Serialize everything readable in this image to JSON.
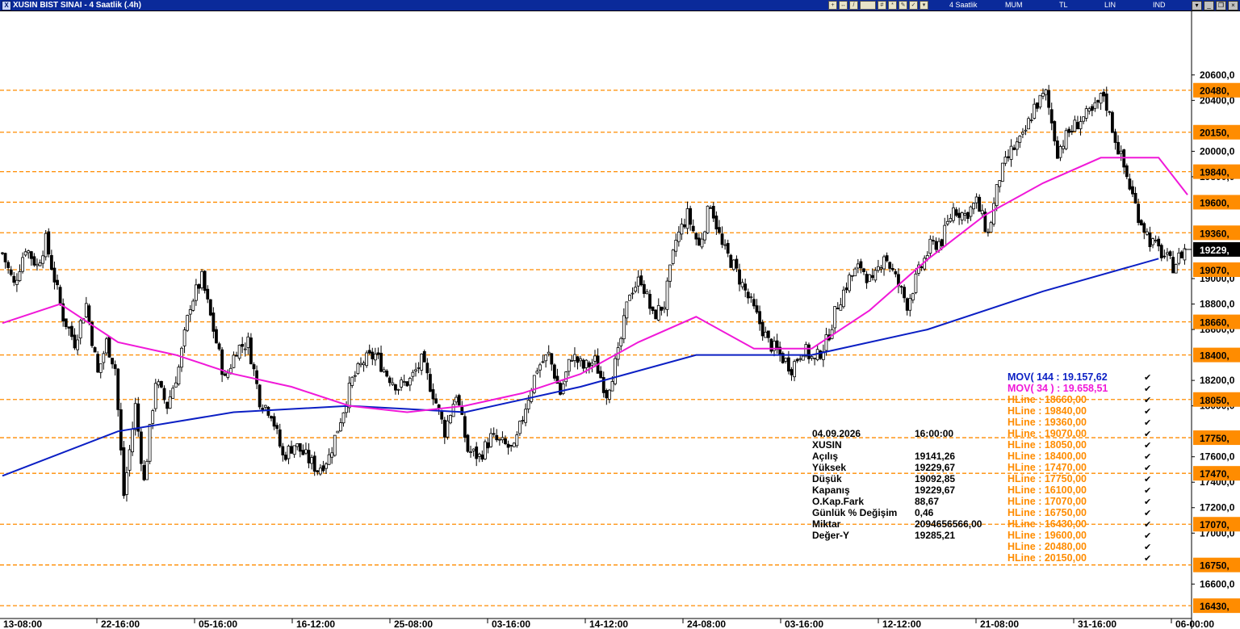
{
  "window": {
    "title": "XUSIN BIST SINAI - 4 Saatlik (.4h)",
    "toolbar": {
      "period": "4 Saatlik",
      "chart_style": "MUM",
      "currency": "TL",
      "scale": "LIN",
      "indicators": "IND"
    }
  },
  "chart_data": {
    "type": "candlestick",
    "symbol": "XUSIN",
    "y_ticks": [
      "20600,0",
      "20400,0",
      "20000,0",
      "19800,0",
      "19000,0",
      "18800,0",
      "18600,0",
      "18200,0",
      "18000,0",
      "17600,0",
      "17400,0",
      "17200,0",
      "17000,0",
      "16600,0"
    ],
    "ylim": [
      16380,
      21100
    ],
    "x_ticks": [
      "13-08:00",
      "22-16:00",
      "05-16:00",
      "16-12:00",
      "25-08:00",
      "03-16:00",
      "14-12:00",
      "24-08:00",
      "03-16:00",
      "12-12:00",
      "21-08:00",
      "31-16:00",
      "06-00:00"
    ],
    "last_price": "19229,",
    "hlines": [
      {
        "value": 18660,
        "label": "18660,"
      },
      {
        "value": 19840,
        "label": "19840,"
      },
      {
        "value": 19360,
        "label": "19360,"
      },
      {
        "value": 19070,
        "label": "19070,"
      },
      {
        "value": 18050,
        "label": "18050,"
      },
      {
        "value": 18400,
        "label": "18400,"
      },
      {
        "value": 17470,
        "label": "17470,"
      },
      {
        "value": 17750,
        "label": "17750,"
      },
      {
        "value": 16100,
        "label": ""
      },
      {
        "value": 17070,
        "label": "17070,"
      },
      {
        "value": 16750,
        "label": "16750,"
      },
      {
        "value": 16430,
        "label": "16430,"
      },
      {
        "value": 19600,
        "label": "19600,"
      },
      {
        "value": 20480,
        "label": "20480,"
      },
      {
        "value": 20150,
        "label": "20150,"
      }
    ],
    "close_path": [
      [
        0,
        19200
      ],
      [
        4,
        18950
      ],
      [
        8,
        19250
      ],
      [
        12,
        19100
      ],
      [
        15,
        19300
      ],
      [
        18,
        19000
      ],
      [
        21,
        18700
      ],
      [
        25,
        18500
      ],
      [
        29,
        18800
      ],
      [
        33,
        18250
      ],
      [
        36,
        18500
      ],
      [
        39,
        18300
      ],
      [
        42,
        17300
      ],
      [
        46,
        18000
      ],
      [
        49,
        17400
      ],
      [
        53,
        18200
      ],
      [
        57,
        18000
      ],
      [
        61,
        18300
      ],
      [
        65,
        18800
      ],
      [
        69,
        19000
      ],
      [
        73,
        18600
      ],
      [
        77,
        18200
      ],
      [
        81,
        18450
      ],
      [
        85,
        18500
      ],
      [
        89,
        18050
      ],
      [
        93,
        17950
      ],
      [
        97,
        17600
      ],
      [
        101,
        17700
      ],
      [
        105,
        17600
      ],
      [
        109,
        17500
      ],
      [
        113,
        17600
      ],
      [
        117,
        17900
      ],
      [
        121,
        18200
      ],
      [
        125,
        18350
      ],
      [
        129,
        18400
      ],
      [
        133,
        18250
      ],
      [
        137,
        18150
      ],
      [
        141,
        18200
      ],
      [
        145,
        18350
      ],
      [
        149,
        18100
      ],
      [
        153,
        17800
      ],
      [
        157,
        18100
      ],
      [
        161,
        17650
      ],
      [
        165,
        17600
      ],
      [
        169,
        17750
      ],
      [
        173,
        17700
      ],
      [
        177,
        17650
      ],
      [
        181,
        18000
      ],
      [
        185,
        18300
      ],
      [
        189,
        18400
      ],
      [
        193,
        18100
      ],
      [
        197,
        18400
      ],
      [
        201,
        18300
      ],
      [
        205,
        18350
      ],
      [
        209,
        18100
      ],
      [
        213,
        18400
      ],
      [
        217,
        18900
      ],
      [
        221,
        19000
      ],
      [
        225,
        18700
      ],
      [
        229,
        18800
      ],
      [
        233,
        19300
      ],
      [
        237,
        19500
      ],
      [
        241,
        19250
      ],
      [
        245,
        19600
      ],
      [
        249,
        19250
      ],
      [
        253,
        19100
      ],
      [
        257,
        18900
      ],
      [
        261,
        18700
      ],
      [
        265,
        18500
      ],
      [
        269,
        18400
      ],
      [
        273,
        18300
      ],
      [
        277,
        18450
      ],
      [
        281,
        18350
      ],
      [
        285,
        18500
      ],
      [
        289,
        18800
      ],
      [
        293,
        19000
      ],
      [
        297,
        19100
      ],
      [
        301,
        18950
      ],
      [
        305,
        19200
      ],
      [
        309,
        19000
      ],
      [
        313,
        18800
      ],
      [
        317,
        19050
      ],
      [
        321,
        19250
      ],
      [
        325,
        19300
      ],
      [
        329,
        19550
      ],
      [
        333,
        19500
      ],
      [
        337,
        19600
      ],
      [
        341,
        19350
      ],
      [
        345,
        19800
      ],
      [
        349,
        20000
      ],
      [
        353,
        20100
      ],
      [
        357,
        20350
      ],
      [
        361,
        20450
      ],
      [
        365,
        20000
      ],
      [
        369,
        20150
      ],
      [
        373,
        20250
      ],
      [
        377,
        20300
      ],
      [
        381,
        20450
      ],
      [
        385,
        20100
      ],
      [
        389,
        19800
      ],
      [
        393,
        19500
      ],
      [
        397,
        19300
      ],
      [
        401,
        19200
      ],
      [
        405,
        19100
      ],
      [
        409,
        19229
      ]
    ],
    "moving_averages": [
      {
        "name": "MOV( 144 : 19.157,62",
        "color": "#0b1fc4",
        "points": [
          [
            0,
            17450
          ],
          [
            40,
            17800
          ],
          [
            80,
            17950
          ],
          [
            120,
            18000
          ],
          [
            160,
            17950
          ],
          [
            200,
            18150
          ],
          [
            240,
            18400
          ],
          [
            280,
            18400
          ],
          [
            320,
            18600
          ],
          [
            360,
            18900
          ],
          [
            400,
            19157
          ]
        ]
      },
      {
        "name": "MOV( 34 ) : 19.658,51",
        "color": "#f019d8",
        "points": [
          [
            0,
            18650
          ],
          [
            20,
            18800
          ],
          [
            40,
            18500
          ],
          [
            60,
            18400
          ],
          [
            80,
            18250
          ],
          [
            100,
            18150
          ],
          [
            120,
            18000
          ],
          [
            140,
            17950
          ],
          [
            160,
            18000
          ],
          [
            180,
            18100
          ],
          [
            200,
            18250
          ],
          [
            220,
            18500
          ],
          [
            240,
            18700
          ],
          [
            260,
            18450
          ],
          [
            280,
            18450
          ],
          [
            300,
            18750
          ],
          [
            320,
            19150
          ],
          [
            340,
            19500
          ],
          [
            360,
            19750
          ],
          [
            380,
            19950
          ],
          [
            400,
            19950
          ],
          [
            410,
            19658
          ]
        ]
      }
    ],
    "readout": {
      "rows": [
        {
          "label": "04.09.2026",
          "value": "16:00:00"
        },
        {
          "label": "XUSIN",
          "value": ""
        },
        {
          "label": "Açılış",
          "value": "19141,26"
        },
        {
          "label": "Yüksek",
          "value": "19229,67"
        },
        {
          "label": "Düşük",
          "value": "19092,85"
        },
        {
          "label": "Kapanış",
          "value": "19229,67"
        },
        {
          "label": "O.Kap.Fark",
          "value": "88,67"
        },
        {
          "label": "Günlük % Değişim",
          "value": "0,46"
        },
        {
          "label": "Miktar",
          "value": "2094656566,00"
        },
        {
          "label": "Değer-Y",
          "value": "19285,21"
        }
      ]
    },
    "legend": [
      {
        "text": "MOV( 144 : 19.157,62",
        "color": "#0b1fc4"
      },
      {
        "text": "MOV( 34 ) : 19.658,51",
        "color": "#f019d8"
      },
      {
        "text": "HLine        : 18660,00",
        "color": "#ff8c00"
      },
      {
        "text": "HLine        : 19840,00",
        "color": "#ff8c00"
      },
      {
        "text": "HLine        : 19360,00",
        "color": "#ff8c00"
      },
      {
        "text": "HLine        : 19070,00",
        "color": "#ff8c00"
      },
      {
        "text": "HLine        : 18050,00",
        "color": "#ff8c00"
      },
      {
        "text": "HLine        : 18400,00",
        "color": "#ff8c00"
      },
      {
        "text": "HLine        : 17470,00",
        "color": "#ff8c00"
      },
      {
        "text": "HLine        : 17750,00",
        "color": "#ff8c00"
      },
      {
        "text": "HLine        : 16100,00",
        "color": "#ff8c00"
      },
      {
        "text": "HLine        : 17070,00",
        "color": "#ff8c00"
      },
      {
        "text": "HLine        : 16750,00",
        "color": "#ff8c00"
      },
      {
        "text": "HLine        : 16430,00",
        "color": "#ff8c00"
      },
      {
        "text": "HLine        : 19600,00",
        "color": "#ff8c00"
      },
      {
        "text": "HLine        : 20480,00",
        "color": "#ff8c00"
      },
      {
        "text": "HLine        : 20150,00",
        "color": "#ff8c00"
      }
    ],
    "colors": {
      "hline": "#ff8c00",
      "axis_label_bg": "#ff8c00",
      "up": "#ffffff",
      "down": "#000000"
    }
  }
}
